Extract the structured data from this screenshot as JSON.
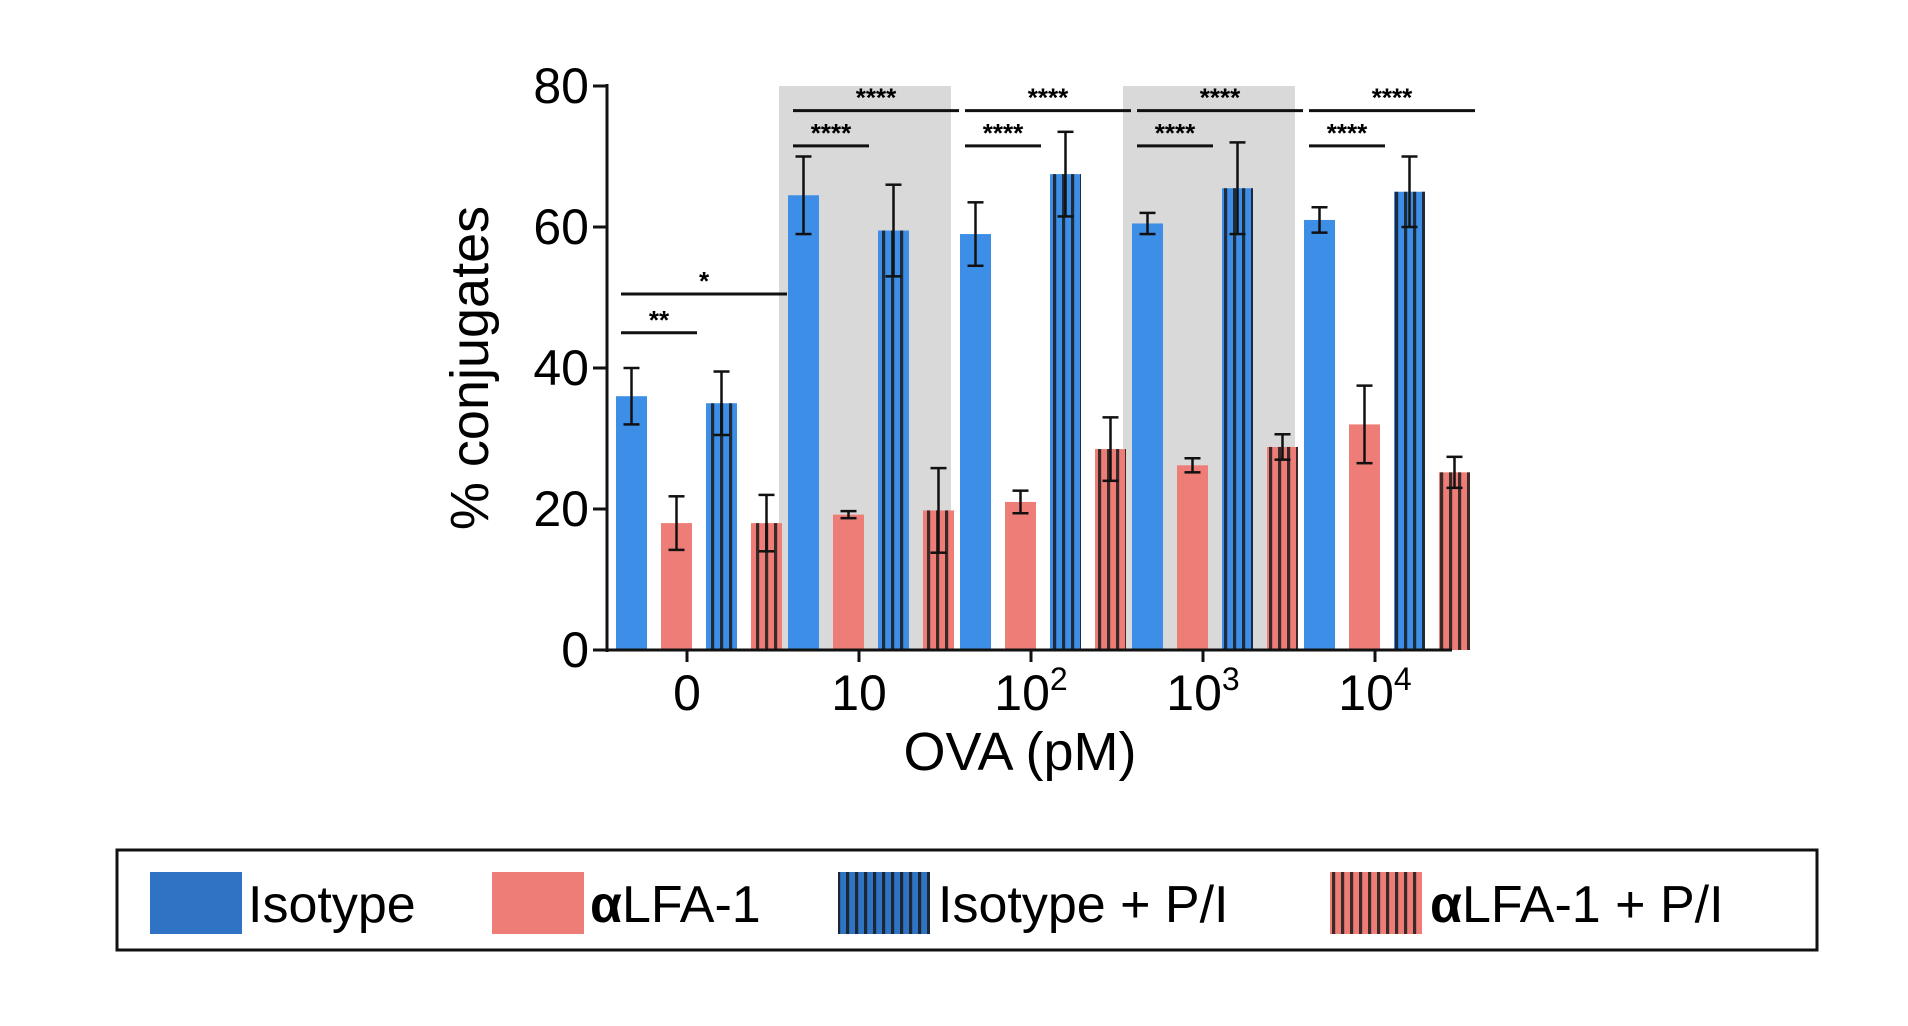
{
  "chart_data": {
    "type": "bar",
    "xlabel": "OVA (pM)",
    "ylabel": "% conjugates",
    "ylim": [
      0,
      80
    ],
    "yticks": [
      0,
      20,
      40,
      60,
      80
    ],
    "categories": [
      {
        "base": "0",
        "exp": ""
      },
      {
        "base": "10",
        "exp": ""
      },
      {
        "base": "10",
        "exp": "2"
      },
      {
        "base": "10",
        "exp": "3"
      },
      {
        "base": "10",
        "exp": "4"
      }
    ],
    "shaded_groups": [
      1,
      3
    ],
    "series": [
      {
        "name": "Isotype",
        "values": [
          36,
          64.5,
          59,
          60.5,
          61
        ],
        "errors": [
          4,
          5.5,
          4.5,
          1.5,
          1.8
        ],
        "color": "#3d8ee6",
        "hatched": false
      },
      {
        "name": "αLFA-1",
        "values": [
          18,
          19.2,
          21,
          26.2,
          32
        ],
        "errors": [
          3.8,
          0.5,
          1.6,
          1.0,
          5.5
        ],
        "color": "#ee7d78",
        "hatched": false
      },
      {
        "name": "Isotype + P/I",
        "values": [
          35,
          59.5,
          67.5,
          65.5,
          65
        ],
        "errors": [
          4.5,
          6.5,
          6,
          6.5,
          5
        ],
        "color": "#3d8ee6",
        "hatched": true
      },
      {
        "name": "αLFA-1 + P/I",
        "values": [
          18,
          19.8,
          28.5,
          28.8,
          25.2
        ],
        "errors": [
          4,
          6,
          4.5,
          1.8,
          2.2
        ],
        "color": "#ee7d78",
        "hatched": true
      }
    ],
    "significance": [
      {
        "group": 0,
        "from": 0,
        "to": 1,
        "label": "**",
        "level": 45
      },
      {
        "group": 0,
        "from": 0,
        "to": 3,
        "label": "*",
        "level": 50.5
      },
      {
        "group": 1,
        "from": 0,
        "to": 1,
        "label": "****",
        "level": 71.5
      },
      {
        "group": 1,
        "from": 0,
        "to": 3,
        "label": "****",
        "level": 76.5
      },
      {
        "group": 2,
        "from": 0,
        "to": 1,
        "label": "****",
        "level": 71.5
      },
      {
        "group": 2,
        "from": 0,
        "to": 3,
        "label": "****",
        "level": 76.5
      },
      {
        "group": 3,
        "from": 0,
        "to": 1,
        "label": "****",
        "level": 71.5
      },
      {
        "group": 3,
        "from": 0,
        "to": 3,
        "label": "****",
        "level": 76.5
      },
      {
        "group": 4,
        "from": 0,
        "to": 1,
        "label": "****",
        "level": 71.5
      },
      {
        "group": 4,
        "from": 0,
        "to": 3,
        "label": "****",
        "level": 76.5
      }
    ],
    "legend_placement": "bottom",
    "grid": false
  }
}
